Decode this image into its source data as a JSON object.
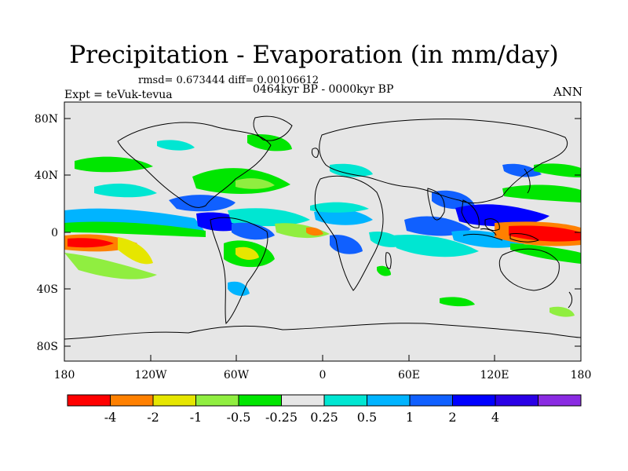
{
  "figure": {
    "title": "Precipitation - Evaporation (in mm/day)",
    "stats": "rmsd= 0.673444 diff= 0.00106612",
    "experiment": "Expt = teVuk-tevua",
    "period": "0464kyr BP - 0000kyr BP",
    "season": "ANN"
  },
  "axes": {
    "lat_ticks": [
      "80N",
      "40N",
      "0",
      "40S",
      "80S"
    ],
    "lon_ticks": [
      "180",
      "120W",
      "60W",
      "0",
      "60E",
      "120E",
      "180"
    ]
  },
  "colorbar": {
    "colors": [
      "#ff0000",
      "#ff8000",
      "#e6e600",
      "#90ee40",
      "#00e600",
      "#e6e6e6",
      "#00e6d2",
      "#00b4ff",
      "#1060ff",
      "#0000ff",
      "#2a00e6",
      "#8a2be2"
    ],
    "labels": [
      "-4",
      "-2",
      "-1",
      "-0.5",
      "-0.25",
      "0.25",
      "0.5",
      "1",
      "2",
      "4"
    ]
  },
  "map": {
    "background": "#e6e6e6",
    "lon_range": [
      -180,
      180
    ],
    "lat_range": [
      -90,
      90
    ]
  }
}
